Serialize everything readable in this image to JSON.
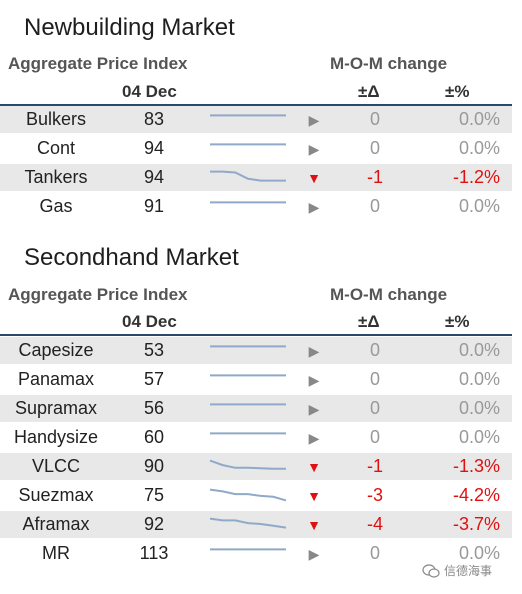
{
  "newbuilding": {
    "title": "Newbuilding Market",
    "header_left": "Aggregate Price Index",
    "header_right": "M-O-M change",
    "date": "04 Dec",
    "delta_header": "±Δ",
    "pct_header": "±%",
    "rows": [
      {
        "name": "Bulkers",
        "value": "83",
        "trend": "flat",
        "arrow": "flat",
        "delta": "0",
        "pct": "0.0%",
        "spark": [
          0.3,
          0.3,
          0.3,
          0.3,
          0.3,
          0.3,
          0.3
        ]
      },
      {
        "name": "Cont",
        "value": "94",
        "trend": "flat",
        "arrow": "flat",
        "delta": "0",
        "pct": "0.0%",
        "spark": [
          0.3,
          0.3,
          0.3,
          0.3,
          0.3,
          0.3,
          0.3
        ]
      },
      {
        "name": "Tankers",
        "value": "94",
        "trend": "down",
        "arrow": "down",
        "delta": "-1",
        "pct": "-1.2%",
        "spark": [
          0.2,
          0.2,
          0.25,
          0.6,
          0.7,
          0.7,
          0.7
        ]
      },
      {
        "name": "Gas",
        "value": "91",
        "trend": "flat",
        "arrow": "flat",
        "delta": "0",
        "pct": "0.0%",
        "spark": [
          0.3,
          0.3,
          0.3,
          0.3,
          0.3,
          0.3,
          0.3
        ]
      }
    ]
  },
  "secondhand": {
    "title": "Secondhand Market",
    "header_left": "Aggregate Price Index",
    "header_right": "M-O-M change",
    "date": "04 Dec",
    "delta_header": "±Δ",
    "pct_header": "±%",
    "rows": [
      {
        "name": "Capesize",
        "value": "53",
        "trend": "flat",
        "arrow": "flat",
        "delta": "0",
        "pct": "0.0%",
        "spark": [
          0.3,
          0.3,
          0.3,
          0.3,
          0.3,
          0.3,
          0.3
        ]
      },
      {
        "name": "Panamax",
        "value": "57",
        "trend": "flat",
        "arrow": "flat",
        "delta": "0",
        "pct": "0.0%",
        "spark": [
          0.3,
          0.3,
          0.3,
          0.3,
          0.3,
          0.3,
          0.3
        ]
      },
      {
        "name": "Supramax",
        "value": "56",
        "trend": "flat",
        "arrow": "flat",
        "delta": "0",
        "pct": "0.0%",
        "spark": [
          0.3,
          0.3,
          0.3,
          0.3,
          0.3,
          0.3,
          0.3
        ]
      },
      {
        "name": "Handysize",
        "value": "60",
        "trend": "flat",
        "arrow": "flat",
        "delta": "0",
        "pct": "0.0%",
        "spark": [
          0.3,
          0.3,
          0.3,
          0.3,
          0.3,
          0.3,
          0.3
        ]
      },
      {
        "name": "VLCC",
        "value": "90",
        "trend": "down",
        "arrow": "down",
        "delta": "-1",
        "pct": "-1.3%",
        "spark": [
          0.2,
          0.45,
          0.6,
          0.6,
          0.62,
          0.65,
          0.65
        ]
      },
      {
        "name": "Suezmax",
        "value": "75",
        "trend": "down",
        "arrow": "down",
        "delta": "-3",
        "pct": "-4.2%",
        "spark": [
          0.2,
          0.3,
          0.45,
          0.45,
          0.55,
          0.6,
          0.8
        ]
      },
      {
        "name": "Aframax",
        "value": "92",
        "trend": "down",
        "arrow": "down",
        "delta": "-4",
        "pct": "-3.7%",
        "spark": [
          0.2,
          0.3,
          0.3,
          0.45,
          0.5,
          0.6,
          0.7
        ]
      },
      {
        "name": "MR",
        "value": "113",
        "trend": "flat",
        "arrow": "flat",
        "delta": "0",
        "pct": "0.0%",
        "spark": [
          0.3,
          0.3,
          0.3,
          0.3,
          0.3,
          0.3,
          0.3
        ]
      }
    ]
  },
  "watermark": {
    "text": "信德海事",
    "icon": "wechat-icon"
  },
  "colors": {
    "rule": "#2a4a6a",
    "shade": "#e8e8e8",
    "down": "#e01010",
    "flat": "#888888",
    "spark": "#8faac8"
  }
}
